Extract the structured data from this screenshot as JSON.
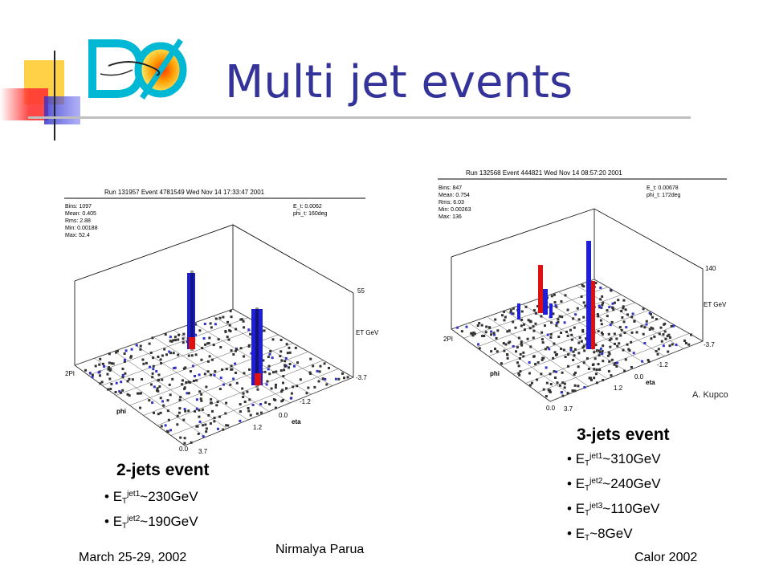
{
  "slide": {
    "title": "Multi jet events",
    "logo_text": "DØ",
    "credit": "A. Kupco"
  },
  "event_left": {
    "header": "Run 131957 Event 4781549 Wed Nov 14 17:33:47 2001",
    "stats": [
      "Bins: 1097",
      "Mean: 0.405",
      "Rms: 2.88",
      "Min: 0.00188",
      "Max: 52.4"
    ],
    "et_info": [
      "E_t: 0.0062",
      "phi_t: 160deg"
    ],
    "axis": {
      "zmax": "55",
      "zlabel": "ET GeV",
      "eta_top": "-3.7",
      "eta_mid1": "-1.2",
      "eta_mid2": "0.0",
      "eta_label": "eta",
      "eta_bot": "1.2",
      "eta_low": "3.7",
      "phi_top": "2PI",
      "phi_label": "phi",
      "phi_zero": "0.0"
    },
    "caption": "2-jets event",
    "bullets": [
      {
        "pre": "E",
        "sub": "T",
        "sup": "jet1",
        "post": "~230GeV"
      },
      {
        "pre": "E",
        "sub": "T",
        "sup": "jet2",
        "post": "~190GeV"
      }
    ]
  },
  "event_right": {
    "header": "Run 132568 Event 444821 Wed Nov 14 08:57:20 2001",
    "stats": [
      "Bins: 847",
      "Mean: 0.754",
      "Rms: 6.03",
      "Min: 0.00263",
      "Max: 136"
    ],
    "et_info": [
      "E_t: 0.00678",
      "phi_t: 172deg"
    ],
    "axis": {
      "zmax": "140",
      "zlabel": "ET GeV",
      "eta_top": "-3.7",
      "eta_mid1": "-1.2",
      "eta_mid2": "0.0",
      "eta_label": "eta",
      "eta_bot": "1.2",
      "eta_low": "3.7",
      "phi_top": "2PI",
      "phi_label": "phi",
      "phi_zero": "0.0"
    },
    "caption": "3-jets event",
    "bullets": [
      {
        "pre": "E",
        "sub": "T",
        "sup": "jet1",
        "post": "~310GeV"
      },
      {
        "pre": "E",
        "sub": "T",
        "sup": "jet2",
        "post": "~240GeV"
      },
      {
        "pre": "E",
        "sub": "T",
        "sup": "jet3",
        "post": "~110GeV"
      },
      {
        "pre": "E",
        "sub": "T",
        "sup": "",
        "post": "~8GeV"
      }
    ]
  },
  "footer": {
    "left": "March 25-29, 2002",
    "center": "Nirmalya Parua",
    "right": "Calor 2002"
  },
  "colors": {
    "title": "#33339a",
    "jet_blue": "#1f1fd6",
    "jet_red": "#e01010",
    "logo_yellow": "#ffcc33",
    "logo_blue": "#3333cc",
    "logo_red": "#ff3333"
  }
}
